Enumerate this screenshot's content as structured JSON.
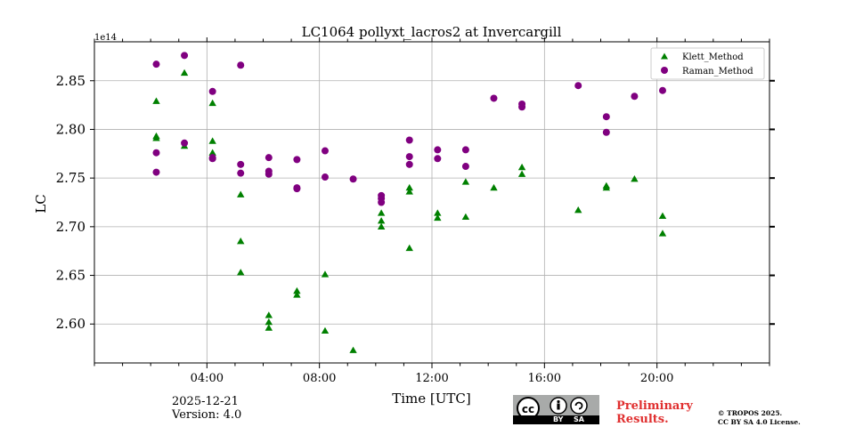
{
  "chart_data": {
    "type": "scatter",
    "title": "LC1064 pollyxt_lacros2 at Invercargill",
    "xlabel": "Time [UTC]",
    "ylabel": "LC",
    "y_offset_label": "1e14",
    "xlim": [
      0,
      24
    ],
    "ylim": [
      2.56,
      2.89
    ],
    "x_ticks": [
      4,
      8,
      12,
      16,
      20
    ],
    "x_tick_labels": [
      "04:00",
      "08:00",
      "12:00",
      "16:00",
      "20:00"
    ],
    "y_ticks": [
      2.6,
      2.65,
      2.7,
      2.75,
      2.8,
      2.85
    ],
    "y_tick_labels": [
      "2.60",
      "2.65",
      "2.70",
      "2.75",
      "2.80",
      "2.85"
    ],
    "grid": true,
    "legend_position": "top-right",
    "series": [
      {
        "name": "Klett_Method",
        "marker": "triangle",
        "color": "#008000",
        "points": [
          [
            2.2,
            2.829
          ],
          [
            2.2,
            2.793
          ],
          [
            2.2,
            2.791
          ],
          [
            3.2,
            2.858
          ],
          [
            3.2,
            2.783
          ],
          [
            4.2,
            2.827
          ],
          [
            4.2,
            2.788
          ],
          [
            4.2,
            2.776
          ],
          [
            4.2,
            2.772
          ],
          [
            5.2,
            2.733
          ],
          [
            5.2,
            2.685
          ],
          [
            5.2,
            2.653
          ],
          [
            6.2,
            2.609
          ],
          [
            6.2,
            2.602
          ],
          [
            6.2,
            2.596
          ],
          [
            7.2,
            2.634
          ],
          [
            7.2,
            2.63
          ],
          [
            8.2,
            2.651
          ],
          [
            8.2,
            2.593
          ],
          [
            9.2,
            2.573
          ],
          [
            10.2,
            2.714
          ],
          [
            10.2,
            2.706
          ],
          [
            10.2,
            2.7
          ],
          [
            11.2,
            2.74
          ],
          [
            11.2,
            2.736
          ],
          [
            11.2,
            2.678
          ],
          [
            12.2,
            2.714
          ],
          [
            12.2,
            2.709
          ],
          [
            13.2,
            2.746
          ],
          [
            13.2,
            2.71
          ],
          [
            14.2,
            2.74
          ],
          [
            15.2,
            2.761
          ],
          [
            15.2,
            2.754
          ],
          [
            17.2,
            2.717
          ],
          [
            18.2,
            2.742
          ],
          [
            18.2,
            2.74
          ],
          [
            19.2,
            2.749
          ],
          [
            20.2,
            2.711
          ],
          [
            20.2,
            2.693
          ]
        ]
      },
      {
        "name": "Raman_Method",
        "marker": "circle",
        "color": "#800080",
        "points": [
          [
            2.2,
            2.867
          ],
          [
            2.2,
            2.776
          ],
          [
            2.2,
            2.756
          ],
          [
            3.2,
            2.876
          ],
          [
            3.2,
            2.786
          ],
          [
            4.2,
            2.839
          ],
          [
            4.2,
            2.771
          ],
          [
            4.2,
            2.77
          ],
          [
            5.2,
            2.866
          ],
          [
            5.2,
            2.764
          ],
          [
            5.2,
            2.755
          ],
          [
            6.2,
            2.771
          ],
          [
            6.2,
            2.757
          ],
          [
            6.2,
            2.754
          ],
          [
            7.2,
            2.769
          ],
          [
            7.2,
            2.74
          ],
          [
            7.2,
            2.739
          ],
          [
            8.2,
            2.778
          ],
          [
            8.2,
            2.751
          ],
          [
            9.2,
            2.749
          ],
          [
            10.2,
            2.732
          ],
          [
            10.2,
            2.729
          ],
          [
            10.2,
            2.725
          ],
          [
            11.2,
            2.789
          ],
          [
            11.2,
            2.772
          ],
          [
            11.2,
            2.764
          ],
          [
            12.2,
            2.779
          ],
          [
            12.2,
            2.77
          ],
          [
            13.2,
            2.779
          ],
          [
            13.2,
            2.762
          ],
          [
            14.2,
            2.832
          ],
          [
            15.2,
            2.826
          ],
          [
            15.2,
            2.823
          ],
          [
            17.2,
            2.845
          ],
          [
            18.2,
            2.813
          ],
          [
            18.2,
            2.797
          ],
          [
            19.2,
            2.834
          ],
          [
            20.2,
            2.84
          ]
        ]
      }
    ]
  },
  "footer": {
    "date": "2025-12-21",
    "version": "Version: 4.0",
    "preliminary_line1": "Preliminary",
    "preliminary_line2": "Results.",
    "copyright_line1": "© TROPOS 2025.",
    "copyright_line2": "CC BY SA 4.0 License.",
    "license_badge": {
      "cc": "cc",
      "by": "BY",
      "sa": "SA"
    }
  }
}
